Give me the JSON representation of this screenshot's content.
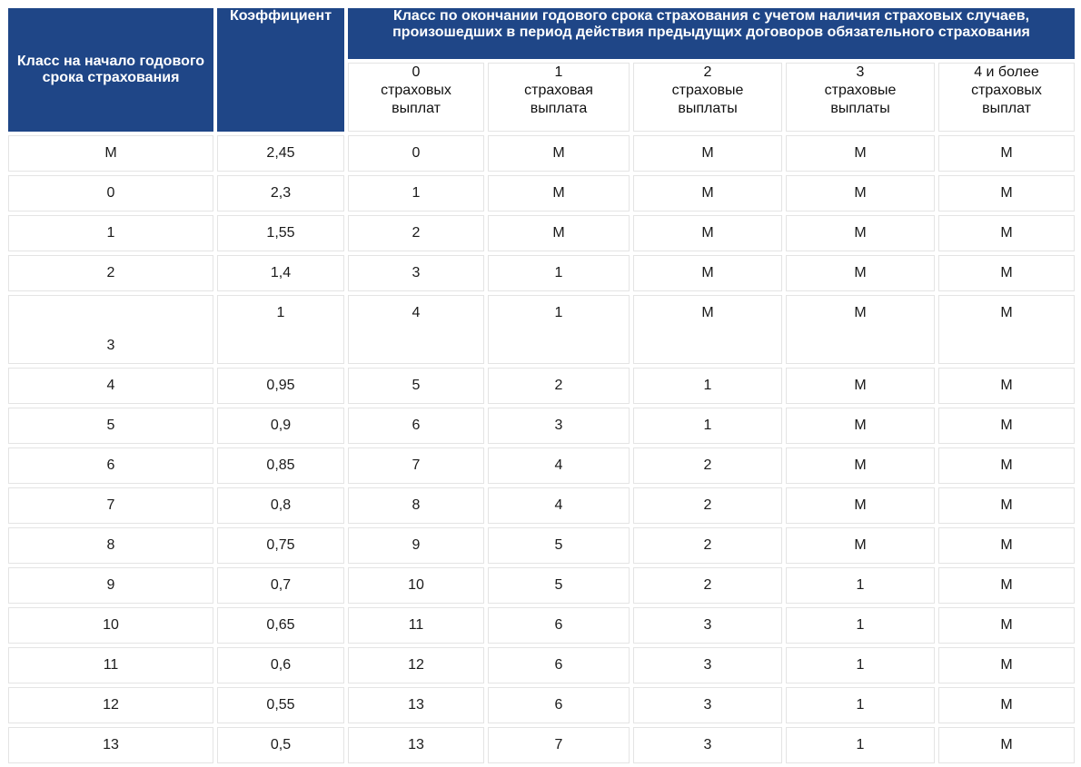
{
  "table": {
    "header": {
      "class_start": "Класс на начало годового срока страхования",
      "coefficient": "Коэффициент",
      "class_end_line1": "Класс по окончании годового срока страхования с учетом наличия страховых случаев,",
      "class_end_line2": "произошедших в период действия предыдущих договоров обязательного страхования",
      "sub_columns": [
        [
          "0",
          "страховых",
          "выплат"
        ],
        [
          "1",
          "страховая",
          "выплата"
        ],
        [
          "2",
          "страховые",
          "выплаты"
        ],
        [
          "3",
          "страховые",
          "выплаты"
        ],
        [
          "4 и более",
          "страховых",
          "выплат"
        ]
      ]
    },
    "rows": [
      [
        "М",
        "2,45",
        "0",
        "М",
        "М",
        "М",
        "М"
      ],
      [
        "0",
        "2,3",
        "1",
        "М",
        "М",
        "М",
        "М"
      ],
      [
        "1",
        "1,55",
        "2",
        "М",
        "М",
        "М",
        "М"
      ],
      [
        "2",
        "1,4",
        "3",
        "1",
        "М",
        "М",
        "М"
      ],
      [
        "3",
        "1",
        "4",
        "1",
        "М",
        "М",
        "М"
      ],
      [
        "4",
        "0,95",
        "5",
        "2",
        "1",
        "М",
        "М"
      ],
      [
        "5",
        "0,9",
        "6",
        "3",
        "1",
        "М",
        "М"
      ],
      [
        "6",
        "0,85",
        "7",
        "4",
        "2",
        "М",
        "М"
      ],
      [
        "7",
        "0,8",
        "8",
        "4",
        "2",
        "М",
        "М"
      ],
      [
        "8",
        "0,75",
        "9",
        "5",
        "2",
        "М",
        "М"
      ],
      [
        "9",
        "0,7",
        "10",
        "5",
        "2",
        "1",
        "М"
      ],
      [
        "10",
        "0,65",
        "11",
        "6",
        "3",
        "1",
        "М"
      ],
      [
        "11",
        "0,6",
        "12",
        "6",
        "3",
        "1",
        "М"
      ],
      [
        "12",
        "0,55",
        "13",
        "6",
        "3",
        "1",
        "М"
      ],
      [
        "13",
        "0,5",
        "13",
        "7",
        "3",
        "1",
        "М"
      ]
    ]
  }
}
